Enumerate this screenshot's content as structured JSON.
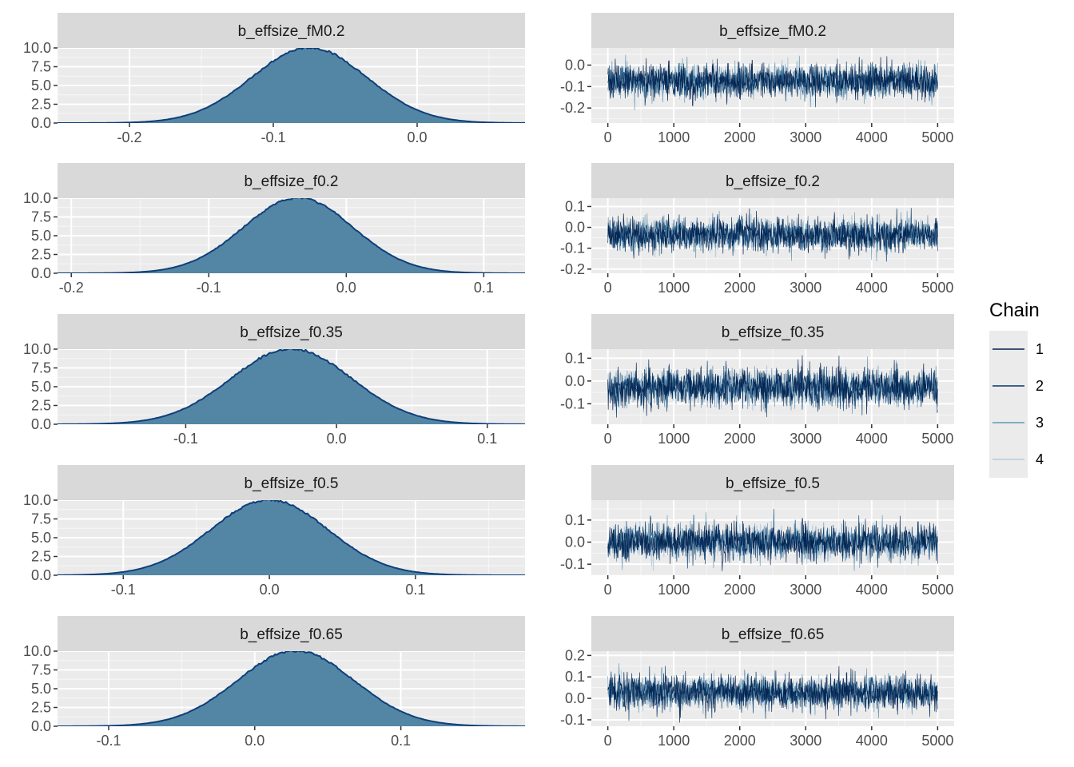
{
  "colors": {
    "panel_bg": "#EBEBEB",
    "strip_bg": "#D9D9D9",
    "grid_major": "#FFFFFF",
    "density_fill": "#5386A4",
    "density_line": "#0F3F7A",
    "chain_colors": [
      "#011F4B",
      "#03396C",
      "#6497B1",
      "#B3CDE0"
    ]
  },
  "legend": {
    "title": "Chain",
    "items": [
      "1",
      "2",
      "3",
      "4"
    ]
  },
  "chart_data": [
    {
      "type": "area",
      "title": "b_effsize_fM0.2",
      "xlim": [
        -0.25,
        0.075
      ],
      "ylim": [
        0,
        10
      ],
      "xticks": [
        -0.2,
        -0.1,
        0.0
      ],
      "xtick_labels": [
        "-0.2",
        "-0.1",
        "0.0"
      ],
      "yticks": [
        0,
        2.5,
        5,
        7.5,
        10
      ],
      "ytick_labels": [
        "0.0",
        "2.5",
        "5.0",
        "7.5",
        "10.0"
      ],
      "mean": -0.075,
      "sd": 0.04
    },
    {
      "type": "line",
      "title": "b_effsize_fM0.2",
      "xlim": [
        -250,
        5250
      ],
      "ylim": [
        -0.27,
        0.08
      ],
      "xticks": [
        0,
        1000,
        2000,
        3000,
        4000,
        5000
      ],
      "xtick_labels": [
        "0",
        "1000",
        "2000",
        "3000",
        "4000",
        "5000"
      ],
      "yticks": [
        -0.2,
        -0.1,
        0.0
      ],
      "ytick_labels": [
        "-0.2",
        "-0.1",
        "0.0"
      ],
      "series": [
        {
          "name": "1"
        },
        {
          "name": "2"
        },
        {
          "name": "3"
        },
        {
          "name": "4"
        }
      ],
      "mean": -0.075,
      "sd": 0.04
    },
    {
      "type": "area",
      "title": "b_effsize_f0.2",
      "xlim": [
        -0.21,
        0.13
      ],
      "ylim": [
        0,
        10
      ],
      "xticks": [
        -0.2,
        -0.1,
        0.0,
        0.1
      ],
      "xtick_labels": [
        "-0.2",
        "-0.1",
        "0.0",
        "0.1"
      ],
      "yticks": [
        0,
        2.5,
        5,
        7.5,
        10
      ],
      "ytick_labels": [
        "0.0",
        "2.5",
        "5.0",
        "7.5",
        "10.0"
      ],
      "mean": -0.035,
      "sd": 0.04
    },
    {
      "type": "line",
      "title": "b_effsize_f0.2",
      "xlim": [
        -250,
        5250
      ],
      "ylim": [
        -0.22,
        0.14
      ],
      "xticks": [
        0,
        1000,
        2000,
        3000,
        4000,
        5000
      ],
      "xtick_labels": [
        "0",
        "1000",
        "2000",
        "3000",
        "4000",
        "5000"
      ],
      "yticks": [
        -0.2,
        -0.1,
        0.0,
        0.1
      ],
      "ytick_labels": [
        "-0.2",
        "-0.1",
        "0.0",
        "0.1"
      ],
      "series": [
        {
          "name": "1"
        },
        {
          "name": "2"
        },
        {
          "name": "3"
        },
        {
          "name": "4"
        }
      ],
      "mean": -0.035,
      "sd": 0.04
    },
    {
      "type": "area",
      "title": "b_effsize_f0.35",
      "xlim": [
        -0.185,
        0.125
      ],
      "ylim": [
        0,
        10
      ],
      "xticks": [
        -0.1,
        0.0,
        0.1
      ],
      "xtick_labels": [
        "-0.1",
        "0.0",
        "0.1"
      ],
      "yticks": [
        0,
        2.5,
        5,
        7.5,
        10
      ],
      "ytick_labels": [
        "0.0",
        "2.5",
        "5.0",
        "7.5",
        "10.0"
      ],
      "mean": -0.03,
      "sd": 0.04
    },
    {
      "type": "line",
      "title": "b_effsize_f0.35",
      "xlim": [
        -250,
        5250
      ],
      "ylim": [
        -0.19,
        0.14
      ],
      "xticks": [
        0,
        1000,
        2000,
        3000,
        4000,
        5000
      ],
      "xtick_labels": [
        "0",
        "1000",
        "2000",
        "3000",
        "4000",
        "5000"
      ],
      "yticks": [
        -0.1,
        0.0,
        0.1
      ],
      "ytick_labels": [
        "-0.1",
        "0.0",
        "0.1"
      ],
      "series": [
        {
          "name": "1"
        },
        {
          "name": "2"
        },
        {
          "name": "3"
        },
        {
          "name": "4"
        }
      ],
      "mean": -0.03,
      "sd": 0.04
    },
    {
      "type": "area",
      "title": "b_effsize_f0.5",
      "xlim": [
        -0.145,
        0.175
      ],
      "ylim": [
        0,
        10
      ],
      "xticks": [
        -0.1,
        0.0,
        0.1
      ],
      "xtick_labels": [
        "-0.1",
        "0.0",
        "0.1"
      ],
      "yticks": [
        0,
        2.5,
        5,
        7.5,
        10
      ],
      "ytick_labels": [
        "0.0",
        "2.5",
        "5.0",
        "7.5",
        "10.0"
      ],
      "mean": 0.0,
      "sd": 0.04
    },
    {
      "type": "line",
      "title": "b_effsize_f0.5",
      "xlim": [
        -250,
        5250
      ],
      "ylim": [
        -0.15,
        0.19
      ],
      "xticks": [
        0,
        1000,
        2000,
        3000,
        4000,
        5000
      ],
      "xtick_labels": [
        "0",
        "1000",
        "2000",
        "3000",
        "4000",
        "5000"
      ],
      "yticks": [
        -0.1,
        0.0,
        0.1
      ],
      "ytick_labels": [
        "-0.1",
        "0.0",
        "0.1"
      ],
      "series": [
        {
          "name": "1"
        },
        {
          "name": "2"
        },
        {
          "name": "3"
        },
        {
          "name": "4"
        }
      ],
      "mean": 0.0,
      "sd": 0.04
    },
    {
      "type": "area",
      "title": "b_effsize_f0.65",
      "xlim": [
        -0.135,
        0.185
      ],
      "ylim": [
        0,
        10
      ],
      "xticks": [
        -0.1,
        0.0,
        0.1
      ],
      "xtick_labels": [
        "-0.1",
        "0.0",
        "0.1"
      ],
      "yticks": [
        0,
        2.5,
        5,
        7.5,
        10
      ],
      "ytick_labels": [
        "0.0",
        "2.5",
        "5.0",
        "7.5",
        "10.0"
      ],
      "mean": 0.028,
      "sd": 0.04
    },
    {
      "type": "line",
      "title": "b_effsize_f0.65",
      "xlim": [
        -250,
        5250
      ],
      "ylim": [
        -0.13,
        0.22
      ],
      "xticks": [
        0,
        1000,
        2000,
        3000,
        4000,
        5000
      ],
      "xtick_labels": [
        "0",
        "1000",
        "2000",
        "3000",
        "4000",
        "5000"
      ],
      "yticks": [
        -0.1,
        0.0,
        0.1,
        0.2
      ],
      "ytick_labels": [
        "-0.1",
        "0.0",
        "0.1",
        "0.2"
      ],
      "series": [
        {
          "name": "1"
        },
        {
          "name": "2"
        },
        {
          "name": "3"
        },
        {
          "name": "4"
        }
      ],
      "mean": 0.028,
      "sd": 0.04
    }
  ]
}
